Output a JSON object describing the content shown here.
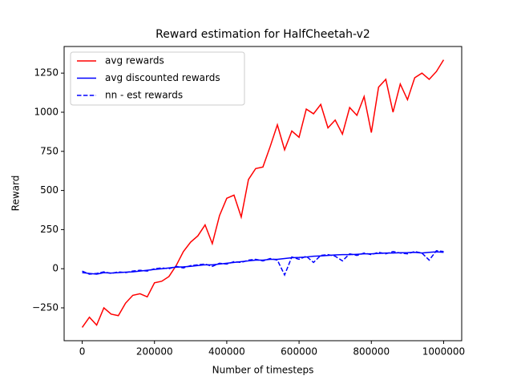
{
  "chart_data": {
    "type": "line",
    "title": "Reward estimation for HalfCheetah-v2",
    "x_label": "Number of timesteps",
    "y_label": "Reward",
    "x": [
      0,
      20000,
      40000,
      60000,
      80000,
      100000,
      120000,
      140000,
      160000,
      180000,
      200000,
      220000,
      240000,
      260000,
      280000,
      300000,
      320000,
      340000,
      360000,
      380000,
      400000,
      420000,
      440000,
      460000,
      480000,
      500000,
      520000,
      540000,
      560000,
      580000,
      600000,
      620000,
      640000,
      660000,
      680000,
      700000,
      720000,
      740000,
      760000,
      780000,
      800000,
      820000,
      840000,
      860000,
      880000,
      900000,
      920000,
      940000,
      960000,
      980000,
      1000000
    ],
    "series": [
      {
        "name": "avg rewards",
        "color": "#ff0000",
        "dash": "solid",
        "values": [
          -375,
          -310,
          -360,
          -250,
          -290,
          -300,
          -220,
          -170,
          -160,
          -180,
          -90,
          -80,
          -50,
          20,
          110,
          170,
          210,
          280,
          160,
          340,
          450,
          470,
          330,
          570,
          640,
          650,
          780,
          920,
          760,
          880,
          840,
          1020,
          990,
          1050,
          900,
          950,
          860,
          1030,
          980,
          1100,
          870,
          1160,
          1210,
          1000,
          1180,
          1080,
          1220,
          1250,
          1210,
          1260,
          1335
        ]
      },
      {
        "name": "avg discounted rewards",
        "color": "#0000ff",
        "dash": "solid",
        "values": [
          -25,
          -30,
          -35,
          -25,
          -28,
          -25,
          -22,
          -20,
          -15,
          -10,
          -5,
          0,
          5,
          10,
          12,
          15,
          20,
          25,
          25,
          30,
          35,
          40,
          45,
          50,
          55,
          55,
          60,
          60,
          65,
          70,
          72,
          75,
          80,
          82,
          85,
          88,
          90,
          90,
          92,
          95,
          95,
          98,
          100,
          100,
          102,
          103,
          105,
          100,
          105,
          108,
          105
        ]
      },
      {
        "name": "nn - est rewards",
        "color": "#0000ff",
        "dash": "dashed",
        "values": [
          -15,
          -35,
          -30,
          -20,
          -30,
          -20,
          -25,
          -15,
          -10,
          -15,
          0,
          5,
          0,
          15,
          5,
          20,
          25,
          30,
          15,
          35,
          30,
          45,
          40,
          55,
          60,
          50,
          65,
          55,
          -40,
          75,
          60,
          80,
          40,
          85,
          90,
          80,
          50,
          95,
          85,
          100,
          90,
          105,
          95,
          110,
          100,
          95,
          110,
          100,
          55,
          115,
          110
        ]
      }
    ],
    "xlim": [
      -50000,
      1050000
    ],
    "ylim": [
      -460,
      1420
    ],
    "xticks": [
      0,
      200000,
      400000,
      600000,
      800000,
      1000000
    ],
    "yticks": [
      {
        "value": -250,
        "label": "−250"
      },
      0,
      250,
      500,
      750,
      1000,
      1250
    ],
    "legend": "upper left"
  }
}
